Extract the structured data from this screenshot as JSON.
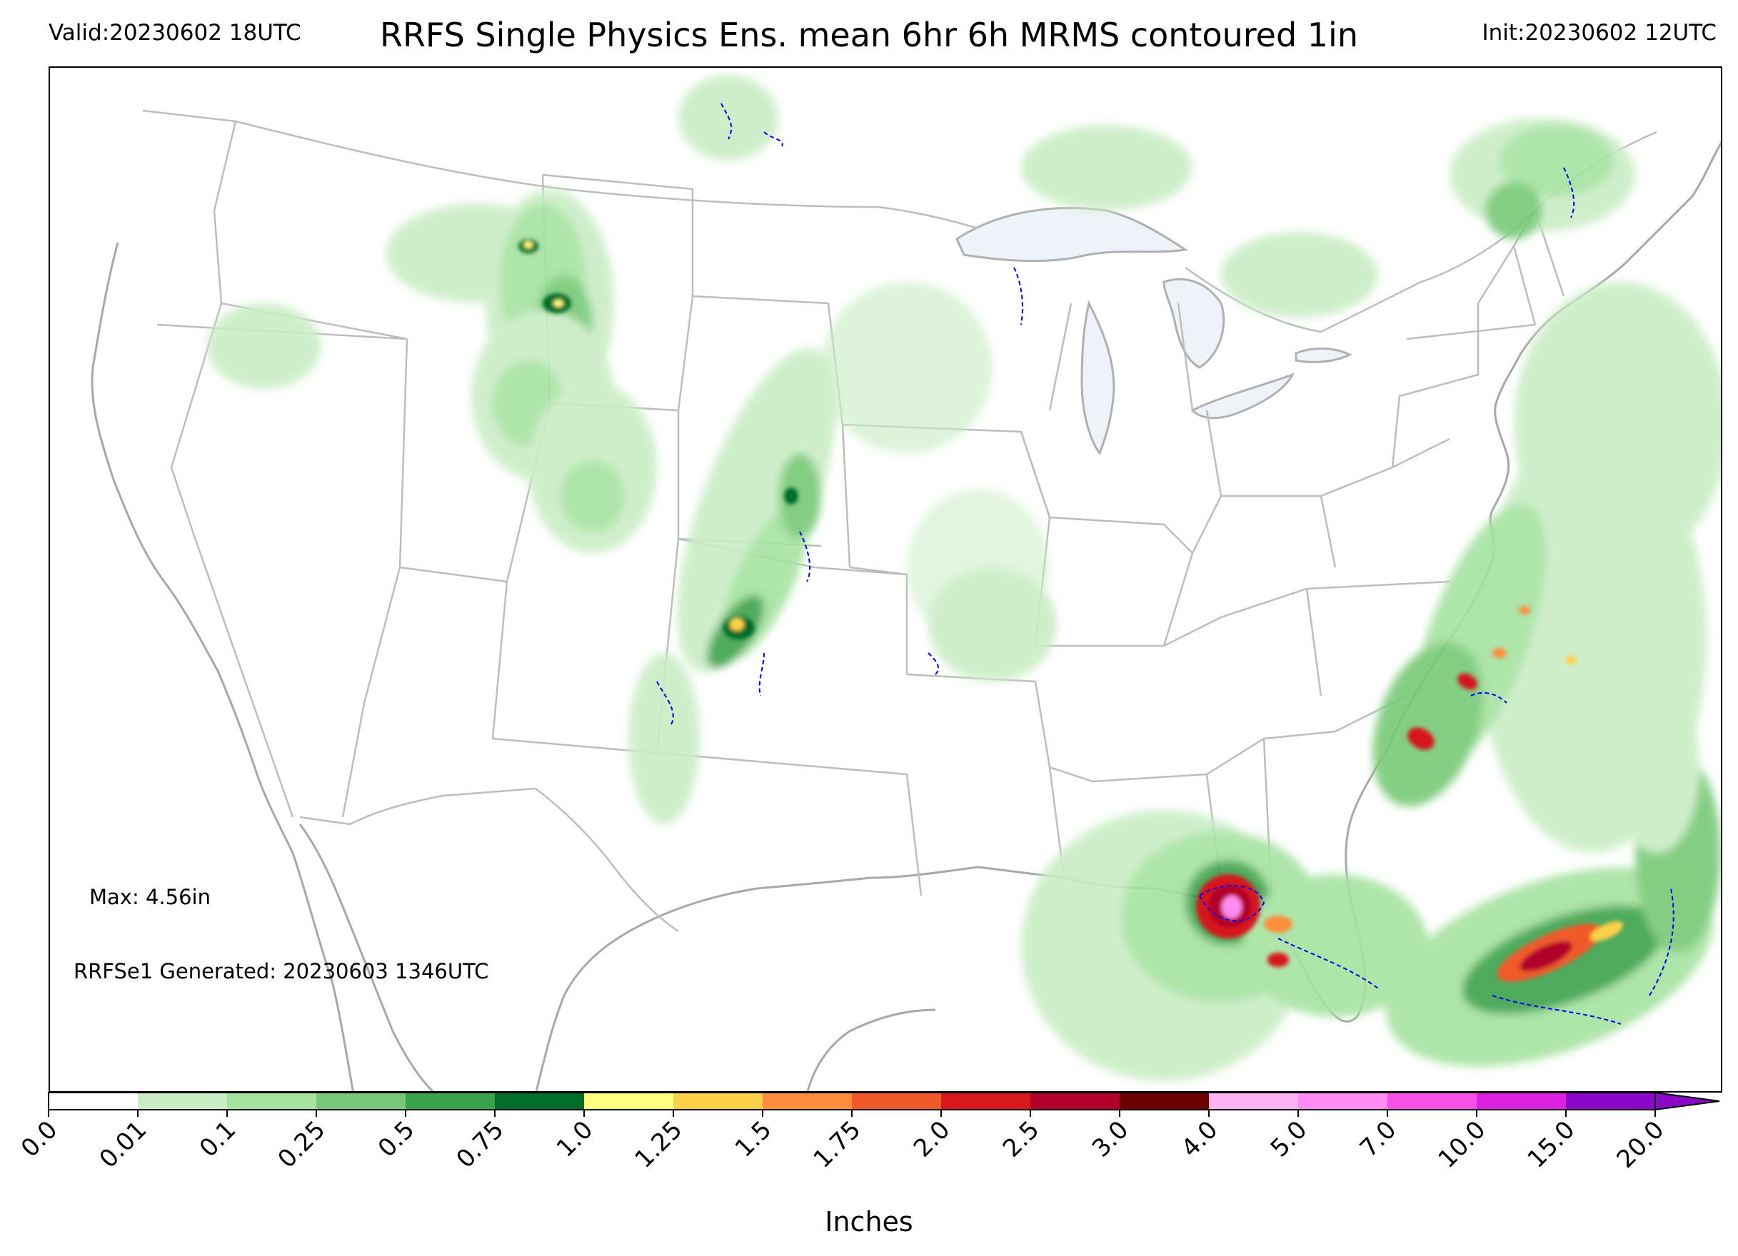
{
  "header": {
    "valid": "Valid:20230602 18UTC",
    "title": "RRFS Single Physics Ens. mean 6hr 6h MRMS contoured 1in",
    "init": "Init:20230602 12UTC"
  },
  "annotations": {
    "max": "Max: 4.56in",
    "generated": "RRFSe1 Generated: 20230603 1346UTC"
  },
  "colorbar": {
    "label": "Inches",
    "ticks": [
      "0.0",
      "0.01",
      "0.1",
      "0.25",
      "0.5",
      "0.75",
      "1.0",
      "1.25",
      "1.5",
      "1.75",
      "2.0",
      "2.5",
      "3.0",
      "4.0",
      "5.0",
      "7.0",
      "10.0",
      "15.0",
      "20.0"
    ],
    "colors": [
      "#ffffff",
      "#c9ecc4",
      "#a5e2a0",
      "#77c977",
      "#3aa24c",
      "#006d2c",
      "#ffff80",
      "#fdd049",
      "#fd8d3c",
      "#f05a2a",
      "#d7191c",
      "#b2002b",
      "#6b0000",
      "#ffb3f5",
      "#ff8cf0",
      "#f650e6",
      "#dc20e0",
      "#8a08c8"
    ],
    "extend": "max"
  },
  "map": {
    "projection": "Lambert conformal CONUS",
    "layers": [
      "state-borders",
      "country-borders",
      "coastlines",
      "great-lakes",
      "precipitation-fill",
      "mrms-1in-contour"
    ],
    "contour_color": "#0000ff",
    "border_color": "#a8a8a8",
    "lake_color": "#eef3fa"
  }
}
